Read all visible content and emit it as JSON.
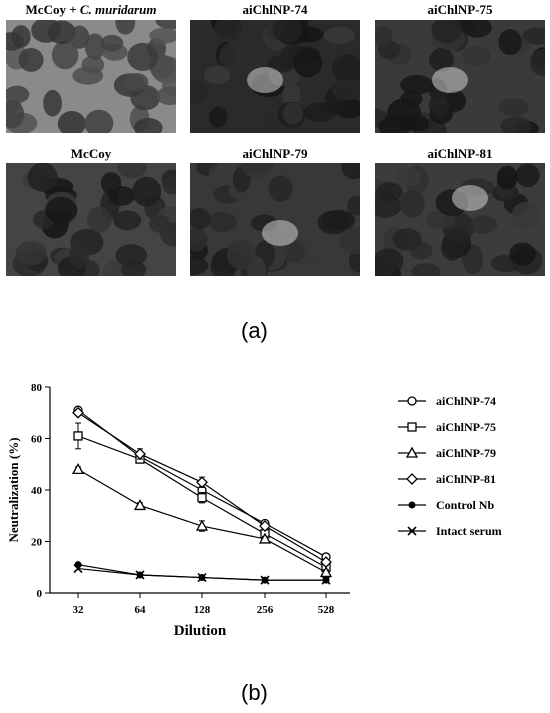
{
  "panel_a": {
    "caption": "(a)",
    "images": [
      {
        "title_main": "McCoy + ",
        "title_ital": "C. muridarum",
        "tone": "#8a8a8a"
      },
      {
        "title_main": "aiChlNP-74",
        "title_ital": "",
        "tone": "#2a2a2a"
      },
      {
        "title_main": "aiChlNP-75",
        "title_ital": "",
        "tone": "#3a3a3a"
      },
      {
        "title_main": "McCoy",
        "title_ital": "",
        "tone": "#444444"
      },
      {
        "title_main": "aiChlNP-79",
        "title_ital": "",
        "tone": "#383838"
      },
      {
        "title_main": "aiChlNP-81",
        "title_ital": "",
        "tone": "#3c3c3c"
      }
    ]
  },
  "panel_b": {
    "caption": "(b)"
  },
  "chart_data": {
    "type": "line",
    "xlabel": "Dilution",
    "ylabel": "Neutralization (%)",
    "categories": [
      "32",
      "64",
      "128",
      "256",
      "528"
    ],
    "ylim": [
      0,
      80
    ],
    "yticks": [
      "0",
      "20",
      "40",
      "60",
      "80"
    ],
    "legend_position": "right",
    "series": [
      {
        "name": "aiChlNP-74",
        "marker": "circle",
        "values": [
          71,
          53,
          40,
          27,
          14
        ],
        "errors": [
          1,
          1,
          2,
          1,
          1
        ]
      },
      {
        "name": "aiChlNP-75",
        "marker": "square",
        "values": [
          61,
          52,
          37,
          23,
          10
        ],
        "errors": [
          5,
          1,
          2,
          1,
          1
        ]
      },
      {
        "name": "aiChlNP-79",
        "marker": "triangle",
        "values": [
          48,
          34,
          26,
          21,
          8
        ],
        "errors": [
          1,
          1,
          2,
          1,
          1
        ]
      },
      {
        "name": "aiChlNP-81",
        "marker": "diamond",
        "values": [
          70,
          54,
          43,
          26,
          12
        ],
        "errors": [
          1,
          2,
          2,
          1,
          1
        ]
      },
      {
        "name": "Control Nb",
        "marker": "dot",
        "values": [
          11,
          7,
          6,
          5,
          5
        ],
        "errors": [
          0,
          0,
          0,
          0,
          0
        ]
      },
      {
        "name": "Intact serum",
        "marker": "cross",
        "values": [
          9.5,
          7,
          6,
          5,
          5
        ],
        "errors": [
          0,
          0,
          0,
          0,
          0
        ]
      }
    ]
  }
}
